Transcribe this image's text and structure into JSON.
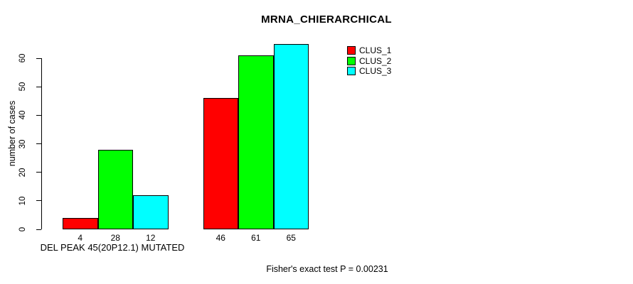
{
  "chart_data": {
    "type": "bar",
    "title": "MRNA_CHIERARCHICAL",
    "ylabel": "number of cases",
    "xlabel": "DEL PEAK 45(20P12.1) MUTATED",
    "footnote": "Fisher's exact test P = 0.00231",
    "ylim": [
      0,
      65
    ],
    "yticks": [
      0,
      10,
      20,
      30,
      40,
      50,
      60
    ],
    "grid": false,
    "legend_position": "top-right",
    "bar_value_labels": true,
    "bar_border_color": "#000000",
    "series": [
      {
        "name": "CLUS_1",
        "color": "#ff0000",
        "values": [
          4,
          46
        ]
      },
      {
        "name": "CLUS_2",
        "color": "#00ff00",
        "values": [
          28,
          61
        ]
      },
      {
        "name": "CLUS_3",
        "color": "#00ffff",
        "values": [
          12,
          65
        ]
      }
    ]
  }
}
